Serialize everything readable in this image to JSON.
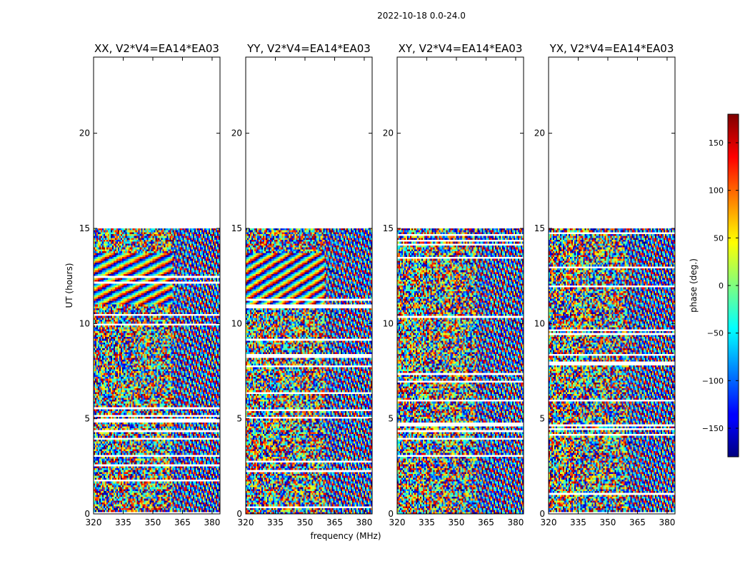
{
  "figure": {
    "suptitle": "2022-10-18 0.0-24.0"
  },
  "chart_data": {
    "type": "heatmap",
    "title": "2022-10-18 0.0-24.0",
    "xlabel": "frequency (MHz)",
    "ylabel": "UT (hours)",
    "xlim": [
      320,
      384
    ],
    "ylim": [
      0,
      24
    ],
    "x_ticks": [
      320,
      335,
      350,
      365,
      380
    ],
    "y_ticks": [
      0,
      5,
      10,
      15,
      20
    ],
    "data_coverage_hours": [
      0,
      15
    ],
    "panels": [
      {
        "title": "XX, V2*V4=EA14*EA03",
        "key": "XX"
      },
      {
        "title": "YY, V2*V4=EA14*EA03",
        "key": "YY"
      },
      {
        "title": "XY, V2*V4=EA14*EA03",
        "key": "XY"
      },
      {
        "title": "YX, V2*V4=EA14*EA03",
        "key": "YX"
      }
    ],
    "colorbar": {
      "label": "phase (deg.)",
      "range": [
        -180,
        180
      ],
      "ticks": [
        -150,
        -100,
        -50,
        0,
        50,
        100,
        150
      ],
      "tick_labels": [
        "−150",
        "−100",
        "−50",
        "0",
        "50",
        "100",
        "150"
      ],
      "colormap": "jet"
    }
  }
}
